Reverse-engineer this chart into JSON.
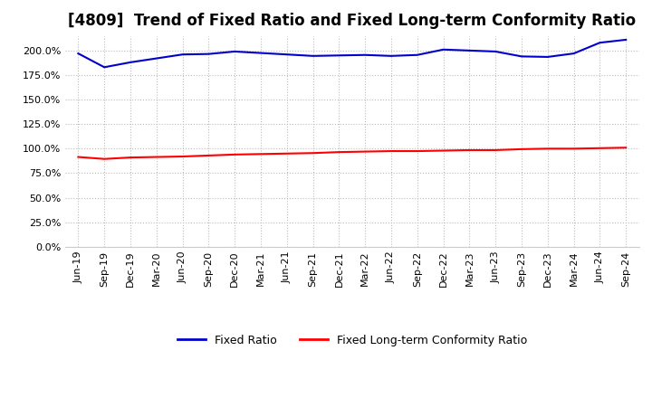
{
  "title": "[4809]  Trend of Fixed Ratio and Fixed Long-term Conformity Ratio",
  "x_labels": [
    "Jun-19",
    "Sep-19",
    "Dec-19",
    "Mar-20",
    "Jun-20",
    "Sep-20",
    "Dec-20",
    "Mar-21",
    "Jun-21",
    "Sep-21",
    "Dec-21",
    "Mar-22",
    "Jun-22",
    "Sep-22",
    "Dec-22",
    "Mar-23",
    "Jun-23",
    "Sep-23",
    "Dec-23",
    "Mar-24",
    "Jun-24",
    "Sep-24"
  ],
  "fixed_ratio": [
    197.0,
    183.0,
    188.0,
    192.0,
    196.0,
    196.5,
    199.0,
    197.5,
    196.0,
    194.5,
    195.0,
    195.5,
    194.5,
    195.5,
    201.0,
    200.0,
    199.0,
    194.0,
    193.5,
    197.0,
    208.0,
    211.0
  ],
  "fixed_lt_ratio": [
    91.5,
    89.5,
    91.0,
    91.5,
    92.0,
    93.0,
    94.0,
    94.5,
    95.0,
    95.5,
    96.5,
    97.0,
    97.5,
    97.5,
    98.0,
    98.5,
    98.5,
    99.5,
    100.0,
    100.0,
    100.5,
    101.0
  ],
  "fixed_ratio_color": "#0000CD",
  "fixed_lt_ratio_color": "#FF0000",
  "ylim": [
    0,
    215
  ],
  "yticks": [
    0,
    25,
    50,
    75,
    100,
    125,
    150,
    175,
    200
  ],
  "background_color": "#FFFFFF",
  "plot_bg_color": "#FFFFFF",
  "grid_color": "#BBBBBB",
  "title_fontsize": 12,
  "tick_fontsize": 8,
  "legend_fixed_ratio": "Fixed Ratio",
  "legend_fixed_lt_ratio": "Fixed Long-term Conformity Ratio"
}
